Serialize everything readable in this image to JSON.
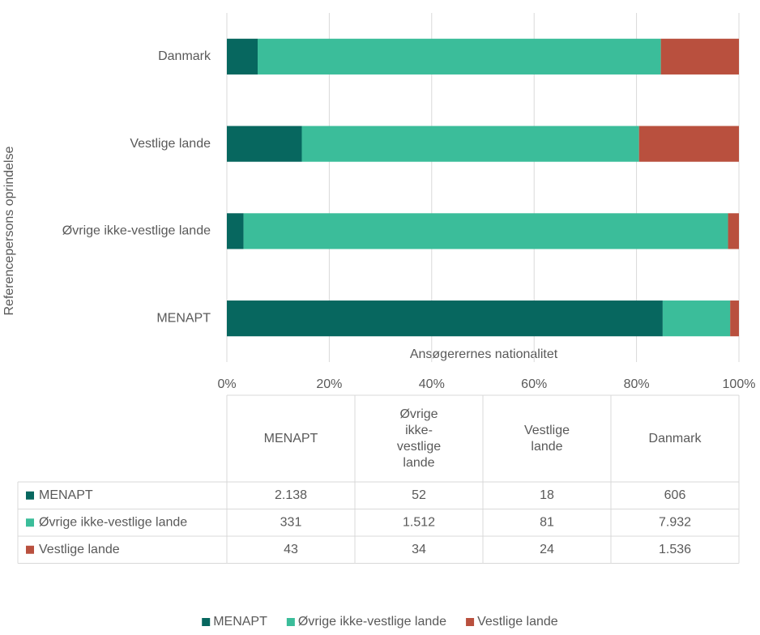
{
  "chart_data": {
    "type": "bar",
    "orientation": "horizontal",
    "stacked": "percent",
    "categories": [
      "MENAPT",
      "Øvrige ikke-vestlige lande",
      "Vestlige lande",
      "Danmark"
    ],
    "series": [
      {
        "name": "MENAPT",
        "color": "#07675f",
        "values": [
          2138,
          52,
          18,
          606
        ],
        "value_labels": [
          "2.138",
          "52",
          "18",
          "606"
        ]
      },
      {
        "name": "Øvrige ikke-vestlige lande",
        "color": "#3bbd9a",
        "values": [
          331,
          1512,
          81,
          7932
        ],
        "value_labels": [
          "331",
          "1.512",
          "81",
          "7.932"
        ]
      },
      {
        "name": "Vestlige lande",
        "color": "#b9503e",
        "values": [
          43,
          34,
          24,
          1536
        ],
        "value_labels": [
          "43",
          "34",
          "24",
          "1.536"
        ]
      }
    ],
    "xlabel": "Ansøgerernes nationalitet",
    "ylabel": "Referencepersons oprindelse",
    "xlim": [
      0,
      100
    ],
    "xticks": [
      {
        "value": 0,
        "label": "0%"
      },
      {
        "value": 20,
        "label": "20%"
      },
      {
        "value": 40,
        "label": "40%"
      },
      {
        "value": 60,
        "label": "60%"
      },
      {
        "value": 80,
        "label": "80%"
      },
      {
        "value": 100,
        "label": "100%"
      }
    ],
    "grid": true,
    "legend": "bottom",
    "data_table": true
  }
}
